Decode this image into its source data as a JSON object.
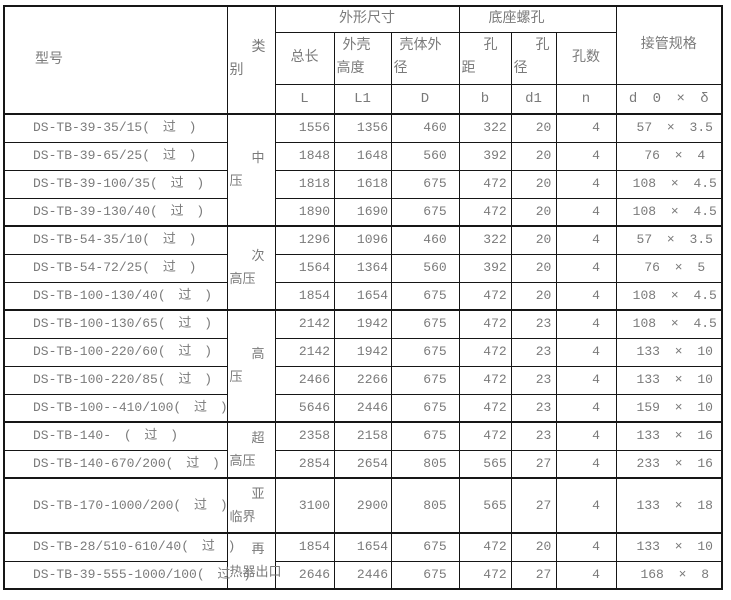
{
  "table": {
    "header": {
      "model": "型号",
      "category_lines": [
        "类",
        "别"
      ],
      "dims_group": "外形尺寸",
      "holes_group": "底座螺孔",
      "pipe_spec": "接管规格",
      "total_length": "总长",
      "shell_height_lines": [
        "外壳",
        "高度"
      ],
      "shell_od_lines": [
        "壳体外",
        "径"
      ],
      "hole_pitch_lines": [
        "孔",
        "距"
      ],
      "hole_dia_lines": [
        "孔",
        "径"
      ],
      "hole_count": "孔数",
      "sym_L": "L",
      "sym_L1": "L1",
      "sym_D": "D",
      "sym_b": "b",
      "sym_d1": "d1",
      "sym_n": "n",
      "sym_spec": "d 0 × δ"
    },
    "categories": [
      {
        "start": 0,
        "rowspan": 4,
        "lines": [
          "中",
          "压"
        ]
      },
      {
        "start": 4,
        "rowspan": 3,
        "lines": [
          "次",
          "高压"
        ]
      },
      {
        "start": 7,
        "rowspan": 4,
        "lines": [
          "高",
          "压"
        ]
      },
      {
        "start": 11,
        "rowspan": 2,
        "lines": [
          "超",
          "高压"
        ]
      },
      {
        "start": 13,
        "rowspan": 1,
        "lines": [
          "亚",
          "临界"
        ]
      },
      {
        "start": 14,
        "rowspan": 2,
        "lines": [
          "再",
          "热器出口"
        ]
      }
    ],
    "rows": [
      {
        "model": "DS-TB-39-35/15( 过 )",
        "L": "1556",
        "L1": "1356",
        "D": "460",
        "b": "322",
        "d1": "20",
        "n": "4",
        "spec": "57 × 3.5"
      },
      {
        "model": "DS-TB-39-65/25( 过 )",
        "L": "1848",
        "L1": "1648",
        "D": "560",
        "b": "392",
        "d1": "20",
        "n": "4",
        "spec": "76 × 4"
      },
      {
        "model": "DS-TB-39-100/35( 过 )",
        "L": "1818",
        "L1": "1618",
        "D": "675",
        "b": "472",
        "d1": "20",
        "n": "4",
        "spec": "108 × 4.5"
      },
      {
        "model": "DS-TB-39-130/40( 过 )",
        "L": "1890",
        "L1": "1690",
        "D": "675",
        "b": "472",
        "d1": "20",
        "n": "4",
        "spec": "108 × 4.5"
      },
      {
        "model": "DS-TB-54-35/10( 过 )",
        "L": "1296",
        "L1": "1096",
        "D": "460",
        "b": "322",
        "d1": "20",
        "n": "4",
        "spec": "57 × 3.5"
      },
      {
        "model": "DS-TB-54-72/25( 过 )",
        "L": "1564",
        "L1": "1364",
        "D": "560",
        "b": "392",
        "d1": "20",
        "n": "4",
        "spec": "76 × 5"
      },
      {
        "model": "DS-TB-100-130/40( 过 )",
        "L": "1854",
        "L1": "1654",
        "D": "675",
        "b": "472",
        "d1": "20",
        "n": "4",
        "spec": "108 × 4.5"
      },
      {
        "model": "DS-TB-100-130/65( 过 )",
        "L": "2142",
        "L1": "1942",
        "D": "675",
        "b": "472",
        "d1": "23",
        "n": "4",
        "spec": "108 × 4.5"
      },
      {
        "model": "DS-TB-100-220/60( 过 )",
        "L": "2142",
        "L1": "1942",
        "D": "675",
        "b": "472",
        "d1": "23",
        "n": "4",
        "spec": "133 × 10"
      },
      {
        "model": "DS-TB-100-220/85( 过 )",
        "L": "2466",
        "L1": "2266",
        "D": "675",
        "b": "472",
        "d1": "23",
        "n": "4",
        "spec": "133 × 10"
      },
      {
        "model": "DS-TB-100--410/100( 过 )",
        "L": "5646",
        "L1": "2446",
        "D": "675",
        "b": "472",
        "d1": "23",
        "n": "4",
        "spec": "159 × 10"
      },
      {
        "model": "DS-TB-140- ( 过 )",
        "L": "2358",
        "L1": "2158",
        "D": "675",
        "b": "472",
        "d1": "23",
        "n": "4",
        "spec": "133 × 16"
      },
      {
        "model": "DS-TB-140-670/200( 过 )",
        "L": "2854",
        "L1": "2654",
        "D": "805",
        "b": "565",
        "d1": "27",
        "n": "4",
        "spec": "233 × 16"
      },
      {
        "model": "DS-TB-170-1000/200( 过 )",
        "L": "3100",
        "L1": "2900",
        "D": "805",
        "b": "565",
        "d1": "27",
        "n": "4",
        "spec": "133 × 18"
      },
      {
        "model": "DS-TB-28/510-610/40( 过 )",
        "L": "1854",
        "L1": "1654",
        "D": "675",
        "b": "472",
        "d1": "20",
        "n": "4",
        "spec": "133 × 10"
      },
      {
        "model": "DS-TB-39-555-1000/100( 过 )",
        "L": "2646",
        "L1": "2446",
        "D": "675",
        "b": "472",
        "d1": "27",
        "n": "4",
        "spec": "168 × 8"
      }
    ]
  },
  "colors": {
    "border": "#161616",
    "text": "#7a7a7a",
    "background": "#ffffff"
  }
}
